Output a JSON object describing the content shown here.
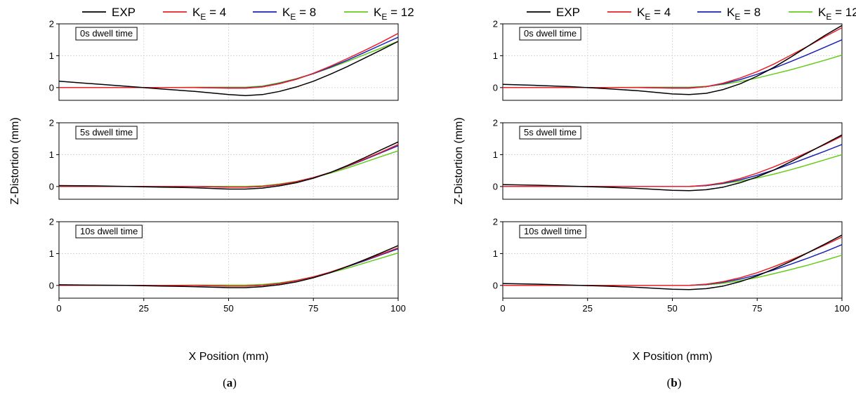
{
  "legend": [
    {
      "key": "exp",
      "name": "EXP",
      "sub": "",
      "rest": "",
      "color": "#000000"
    },
    {
      "key": "k4",
      "name": "K",
      "sub": "E",
      "rest": " = 4",
      "color": "#e8202a"
    },
    {
      "key": "k8",
      "name": "K",
      "sub": "E",
      "rest": " = 8",
      "color": "#1a22b5"
    },
    {
      "key": "k12",
      "name": "K",
      "sub": "E",
      "rest": " = 12",
      "color": "#66cc1a"
    }
  ],
  "xlabel": "X Position (mm)",
  "ylabel": "Z-Distortion (mm)",
  "captions": [
    {
      "open": "(",
      "letter": "a",
      "close": ")"
    },
    {
      "open": "(",
      "letter": "b",
      "close": ")"
    }
  ],
  "chart_data": [
    {
      "type": "line",
      "figure": "a",
      "xlim": [
        0,
        100
      ],
      "ylim": [
        -0.4,
        2
      ],
      "xticks": [
        0,
        25,
        50,
        75,
        100
      ],
      "yticks": [
        0,
        1,
        2
      ],
      "grid": true,
      "legend_position": "top",
      "panels": [
        {
          "annotation": "0s dwell time",
          "x": [
            0,
            10,
            20,
            30,
            40,
            50,
            55,
            60,
            65,
            70,
            75,
            80,
            85,
            90,
            95,
            100
          ],
          "series": [
            {
              "name": "EXP",
              "key": "exp",
              "values": [
                0.2,
                0.12,
                0.04,
                -0.04,
                -0.12,
                -0.22,
                -0.25,
                -0.22,
                -0.12,
                0.02,
                0.2,
                0.42,
                0.66,
                0.92,
                1.18,
                1.45
              ]
            },
            {
              "name": "K_E = 4",
              "key": "k4",
              "values": [
                0,
                0,
                0,
                0,
                0,
                -0.02,
                -0.02,
                0.02,
                0.12,
                0.26,
                0.45,
                0.67,
                0.91,
                1.16,
                1.42,
                1.7
              ]
            },
            {
              "name": "K_E = 8",
              "key": "k8",
              "values": [
                0,
                0,
                0,
                0,
                0,
                -0.01,
                -0.01,
                0.03,
                0.13,
                0.27,
                0.44,
                0.64,
                0.86,
                1.1,
                1.34,
                1.58
              ]
            },
            {
              "name": "K_E = 12",
              "key": "k12",
              "values": [
                0,
                0,
                0,
                0,
                0.01,
                0.01,
                0.01,
                0.05,
                0.15,
                0.28,
                0.44,
                0.62,
                0.82,
                1.03,
                1.24,
                1.45
              ]
            }
          ]
        },
        {
          "annotation": "5s dwell time",
          "x": [
            0,
            10,
            20,
            30,
            40,
            50,
            55,
            60,
            65,
            70,
            75,
            80,
            85,
            90,
            95,
            100
          ],
          "series": [
            {
              "name": "EXP",
              "key": "exp",
              "values": [
                0.03,
                0.02,
                0,
                -0.02,
                -0.04,
                -0.08,
                -0.08,
                -0.05,
                0.02,
                0.12,
                0.26,
                0.44,
                0.66,
                0.9,
                1.15,
                1.4
              ]
            },
            {
              "name": "K_E = 4",
              "key": "k4",
              "values": [
                0,
                0,
                0,
                0,
                0,
                -0.02,
                -0.02,
                0,
                0.06,
                0.15,
                0.28,
                0.44,
                0.64,
                0.86,
                1.08,
                1.32
              ]
            },
            {
              "name": "K_E = 8",
              "key": "k8",
              "values": [
                0,
                0,
                0,
                0,
                0,
                -0.02,
                -0.02,
                0,
                0.06,
                0.15,
                0.28,
                0.44,
                0.63,
                0.84,
                1.06,
                1.28
              ]
            },
            {
              "name": "K_E = 12",
              "key": "k12",
              "values": [
                0,
                0,
                0,
                0,
                0,
                0,
                0,
                0.02,
                0.08,
                0.16,
                0.28,
                0.42,
                0.58,
                0.76,
                0.94,
                1.12
              ]
            }
          ]
        },
        {
          "annotation": "10s dwell time",
          "x": [
            0,
            10,
            20,
            30,
            40,
            50,
            55,
            60,
            65,
            70,
            75,
            80,
            85,
            90,
            95,
            100
          ],
          "series": [
            {
              "name": "EXP",
              "key": "exp",
              "values": [
                0.02,
                0.01,
                0,
                -0.02,
                -0.04,
                -0.07,
                -0.07,
                -0.04,
                0.02,
                0.11,
                0.24,
                0.4,
                0.59,
                0.8,
                1.02,
                1.25
              ]
            },
            {
              "name": "K_E = 4",
              "key": "k4",
              "values": [
                0,
                0,
                0,
                0,
                0,
                -0.02,
                -0.02,
                0,
                0.06,
                0.15,
                0.27,
                0.42,
                0.6,
                0.79,
                0.98,
                1.18
              ]
            },
            {
              "name": "K_E = 8",
              "key": "k8",
              "values": [
                0,
                0,
                0,
                0,
                0,
                -0.02,
                -0.02,
                0,
                0.06,
                0.15,
                0.27,
                0.42,
                0.59,
                0.77,
                0.96,
                1.15
              ]
            },
            {
              "name": "K_E = 12",
              "key": "k12",
              "values": [
                0,
                0,
                0,
                0,
                0.01,
                0.01,
                0.01,
                0.03,
                0.08,
                0.16,
                0.27,
                0.4,
                0.54,
                0.7,
                0.86,
                1.02
              ]
            }
          ]
        }
      ]
    },
    {
      "type": "line",
      "figure": "b",
      "xlim": [
        0,
        100
      ],
      "ylim": [
        -0.4,
        2
      ],
      "xticks": [
        0,
        25,
        50,
        75,
        100
      ],
      "yticks": [
        0,
        1,
        2
      ],
      "grid": true,
      "legend_position": "top",
      "panels": [
        {
          "annotation": "0s dwell time",
          "x": [
            0,
            10,
            20,
            30,
            40,
            50,
            55,
            60,
            65,
            70,
            75,
            80,
            85,
            90,
            95,
            100
          ],
          "series": [
            {
              "name": "EXP",
              "key": "exp",
              "values": [
                0.1,
                0.07,
                0.03,
                -0.03,
                -0.1,
                -0.2,
                -0.22,
                -0.18,
                -0.06,
                0.12,
                0.36,
                0.64,
                0.96,
                1.3,
                1.64,
                1.95
              ]
            },
            {
              "name": "K_E = 4",
              "key": "k4",
              "values": [
                0,
                0,
                0,
                0,
                0,
                -0.02,
                -0.02,
                0.03,
                0.14,
                0.3,
                0.5,
                0.74,
                1.02,
                1.3,
                1.6,
                1.88
              ]
            },
            {
              "name": "K_E = 8",
              "key": "k8",
              "values": [
                0,
                0,
                0,
                0,
                0,
                -0.01,
                -0.01,
                0.03,
                0.12,
                0.25,
                0.42,
                0.61,
                0.82,
                1.04,
                1.27,
                1.5
              ]
            },
            {
              "name": "K_E = 12",
              "key": "k12",
              "values": [
                0,
                0,
                0,
                0,
                0.01,
                0.01,
                0.01,
                0.04,
                0.1,
                0.19,
                0.3,
                0.43,
                0.56,
                0.71,
                0.86,
                1.02
              ]
            }
          ]
        },
        {
          "annotation": "5s dwell time",
          "x": [
            0,
            10,
            20,
            30,
            40,
            50,
            55,
            60,
            65,
            70,
            75,
            80,
            85,
            90,
            95,
            100
          ],
          "series": [
            {
              "name": "EXP",
              "key": "exp",
              "values": [
                0.06,
                0.04,
                0.01,
                -0.02,
                -0.06,
                -0.12,
                -0.13,
                -0.1,
                -0.02,
                0.12,
                0.3,
                0.52,
                0.78,
                1.06,
                1.34,
                1.62
              ]
            },
            {
              "name": "K_E = 4",
              "key": "k4",
              "values": [
                0,
                0,
                0,
                0,
                0,
                0,
                0,
                0.04,
                0.12,
                0.25,
                0.42,
                0.62,
                0.84,
                1.08,
                1.32,
                1.58
              ]
            },
            {
              "name": "K_E = 8",
              "key": "k8",
              "values": [
                0,
                0,
                0,
                0,
                0,
                0,
                0,
                0.03,
                0.1,
                0.21,
                0.35,
                0.52,
                0.71,
                0.91,
                1.11,
                1.32
              ]
            },
            {
              "name": "K_E = 12",
              "key": "k12",
              "values": [
                0,
                0,
                0,
                0,
                0,
                0,
                0,
                0.03,
                0.09,
                0.17,
                0.27,
                0.39,
                0.53,
                0.68,
                0.84,
                1
              ]
            }
          ]
        },
        {
          "annotation": "10s dwell time",
          "x": [
            0,
            10,
            20,
            30,
            40,
            50,
            55,
            60,
            65,
            70,
            75,
            80,
            85,
            90,
            95,
            100
          ],
          "series": [
            {
              "name": "EXP",
              "key": "exp",
              "values": [
                0.06,
                0.04,
                0.01,
                -0.02,
                -0.06,
                -0.12,
                -0.13,
                -0.1,
                -0.02,
                0.12,
                0.3,
                0.52,
                0.76,
                1.03,
                1.3,
                1.58
              ]
            },
            {
              "name": "K_E = 4",
              "key": "k4",
              "values": [
                0,
                0,
                0,
                0,
                0,
                0,
                0,
                0.04,
                0.12,
                0.24,
                0.4,
                0.59,
                0.8,
                1.03,
                1.27,
                1.52
              ]
            },
            {
              "name": "K_E = 8",
              "key": "k8",
              "values": [
                0,
                0,
                0,
                0,
                0,
                0,
                0,
                0.03,
                0.1,
                0.2,
                0.33,
                0.49,
                0.67,
                0.86,
                1.06,
                1.28
              ]
            },
            {
              "name": "K_E = 12",
              "key": "k12",
              "values": [
                0,
                0,
                0,
                0,
                0,
                0,
                0,
                0.02,
                0.07,
                0.15,
                0.25,
                0.37,
                0.5,
                0.64,
                0.79,
                0.95
              ]
            }
          ]
        }
      ]
    }
  ]
}
